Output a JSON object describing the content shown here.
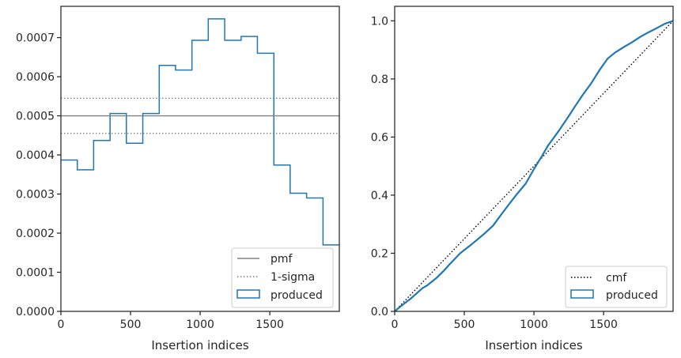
{
  "chart_data": [
    {
      "type": "histogram-step",
      "xlabel": "Insertion indices",
      "ylabel": "",
      "xlim": [
        0,
        1999
      ],
      "ylim": [
        0,
        0.00078
      ],
      "xticks": [
        "0",
        "500",
        "1000",
        "1500"
      ],
      "xtick_values": [
        0,
        500,
        1000,
        1500
      ],
      "yticks": [
        "0.0000",
        "0.0001",
        "0.0002",
        "0.0003",
        "0.0004",
        "0.0005",
        "0.0006",
        "0.0007"
      ],
      "ytick_values": [
        0,
        0.0001,
        0.0002,
        0.0003,
        0.0004,
        0.0005,
        0.0006,
        0.0007
      ],
      "grid": false,
      "legend_position": "bottom-right",
      "bin_edges": [
        0,
        118,
        235,
        353,
        470,
        588,
        706,
        823,
        941,
        1058,
        1176,
        1294,
        1411,
        1529,
        1646,
        1764,
        1882,
        1999
      ],
      "series": [
        {
          "name": "produced",
          "style": "step",
          "color": "#1f77b4",
          "values": [
            0.000387,
            0.000362,
            0.000437,
            0.000506,
            0.00043,
            0.000506,
            0.000629,
            0.000617,
            0.000693,
            0.000748,
            0.000693,
            0.000703,
            0.00066,
            0.000374,
            0.000302,
            0.00029,
            0.00017
          ]
        },
        {
          "name": "pmf",
          "style": "solid",
          "color": "#808080",
          "y": 0.0005
        },
        {
          "name": "1-sigma",
          "style": "dotted",
          "color": "#808080",
          "y": [
            0.000455,
            0.000545
          ]
        }
      ],
      "legend": [
        "pmf",
        "1-sigma",
        "produced"
      ]
    },
    {
      "type": "line",
      "xlabel": "Insertion indices",
      "ylabel": "",
      "xlim": [
        0,
        1999
      ],
      "ylim": [
        0,
        1.05
      ],
      "xticks": [
        "0",
        "500",
        "1000",
        "1500"
      ],
      "xtick_values": [
        0,
        500,
        1000,
        1500
      ],
      "yticks": [
        "0.0",
        "0.2",
        "0.4",
        "0.6",
        "0.8",
        "1.0"
      ],
      "ytick_values": [
        0,
        0.2,
        0.4,
        0.6,
        0.8,
        1.0
      ],
      "grid": false,
      "legend_position": "bottom-right",
      "series": [
        {
          "name": "cmf",
          "style": "dotted",
          "color": "#000000",
          "x": [
            0,
            1999
          ],
          "y": [
            0,
            1
          ]
        },
        {
          "name": "produced",
          "style": "step",
          "color": "#1f77b4",
          "x": [
            0,
            50,
            118,
            200,
            235,
            300,
            353,
            400,
            470,
            550,
            588,
            650,
            706,
            760,
            823,
            880,
            941,
            1000,
            1058,
            1100,
            1176,
            1240,
            1294,
            1350,
            1411,
            1470,
            1529,
            1580,
            1646,
            1700,
            1764,
            1820,
            1882,
            1940,
            1999
          ],
          "y": [
            0,
            0.02,
            0.045,
            0.08,
            0.09,
            0.115,
            0.14,
            0.165,
            0.2,
            0.23,
            0.245,
            0.27,
            0.295,
            0.33,
            0.37,
            0.405,
            0.44,
            0.49,
            0.535,
            0.57,
            0.62,
            0.665,
            0.705,
            0.745,
            0.785,
            0.83,
            0.87,
            0.89,
            0.91,
            0.925,
            0.945,
            0.96,
            0.975,
            0.99,
            1.0
          ]
        }
      ],
      "legend": [
        "cmf",
        "produced"
      ]
    }
  ]
}
